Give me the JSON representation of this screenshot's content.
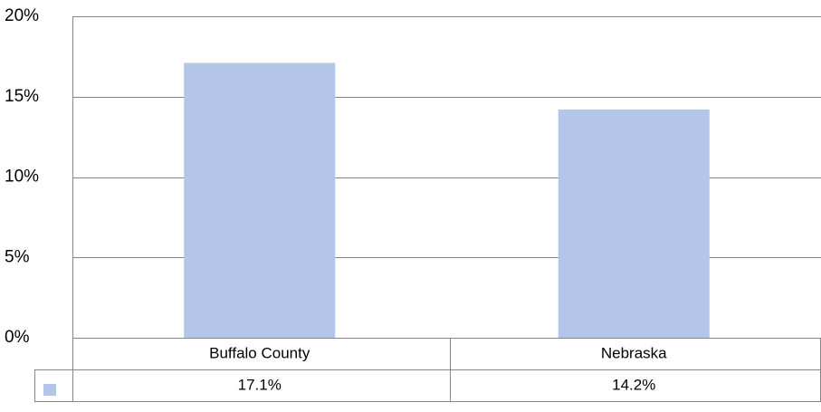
{
  "chart_data": {
    "type": "bar",
    "categories": [
      "Buffalo County",
      "Nebraska"
    ],
    "values": [
      17.1,
      14.2
    ],
    "value_labels": [
      "17.1%",
      "14.2%"
    ],
    "color": "#b3c6e7",
    "ylim": [
      0,
      20
    ],
    "yticks": [
      {
        "value": 0,
        "label": "0%"
      },
      {
        "value": 5,
        "label": "5%"
      },
      {
        "value": 10,
        "label": "10%"
      },
      {
        "value": 15,
        "label": "15%"
      },
      {
        "value": 20,
        "label": "20%"
      }
    ],
    "grid": true
  }
}
